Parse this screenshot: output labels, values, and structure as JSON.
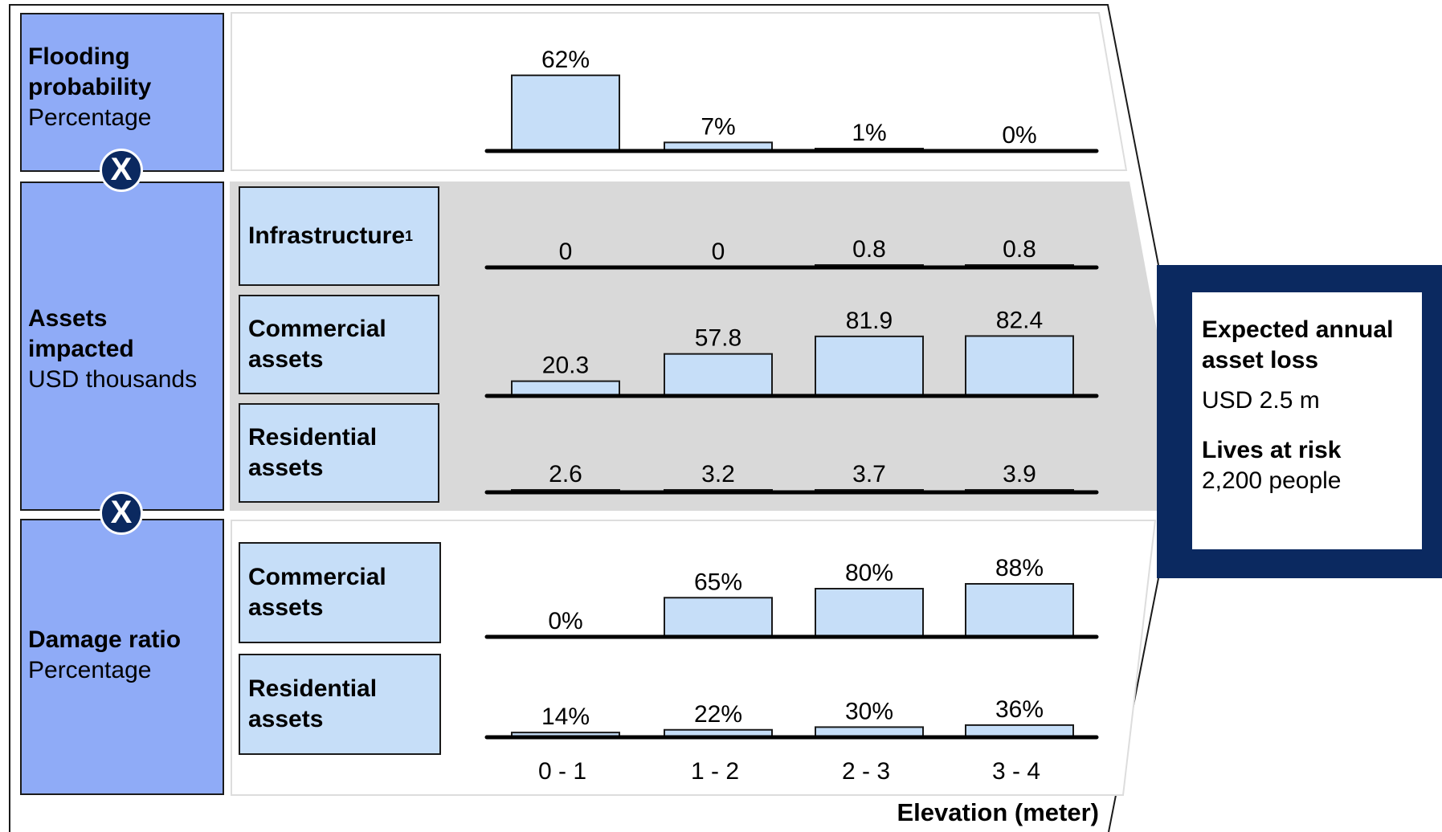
{
  "sections": {
    "flooding": {
      "title": "Flooding",
      "title2": "probability",
      "unit": "Percentage"
    },
    "assets": {
      "title": "Assets",
      "title2": "impacted",
      "unit": "USD thousands"
    },
    "damage": {
      "title": "Damage ratio",
      "unit": "Percentage"
    }
  },
  "categories": {
    "infrastructure": "Infrastructure",
    "infrastructure_sup": "1",
    "commercial_assets_1": "Commercial",
    "commercial_assets_2": "assets",
    "residential_assets_1": "Residential",
    "residential_assets_2": "assets"
  },
  "operators": {
    "multiply": "X"
  },
  "result": {
    "title1": "Expected annual",
    "title2": "asset loss",
    "value": "USD 2.5 m",
    "lives_title": "Lives at risk",
    "lives_value": "2,200 people"
  },
  "colors": {
    "section": "#8fabf7",
    "category": "#c6def8",
    "bar": "#c6def8",
    "accent": "#0b2960",
    "band": "#d9d9d9"
  },
  "chart_data": [
    {
      "type": "bar",
      "name": "Flooding probability",
      "categories": [
        "0 - 1",
        "1 - 2",
        "2 - 3",
        "3 - 4"
      ],
      "values": [
        62,
        7,
        1,
        0
      ],
      "labels": [
        "62%",
        "7%",
        "1%",
        "0%"
      ],
      "unit": "Percentage"
    },
    {
      "type": "bar",
      "name": "Infrastructure",
      "categories": [
        "0 - 1",
        "1 - 2",
        "2 - 3",
        "3 - 4"
      ],
      "values": [
        0,
        0,
        0.8,
        0.8
      ],
      "labels": [
        "0",
        "0",
        "0.8",
        "0.8"
      ],
      "unit": "USD thousands"
    },
    {
      "type": "bar",
      "name": "Commercial assets",
      "categories": [
        "0 - 1",
        "1 - 2",
        "2 - 3",
        "3 - 4"
      ],
      "values": [
        20.3,
        57.8,
        81.9,
        82.4
      ],
      "labels": [
        "20.3",
        "57.8",
        "81.9",
        "82.4"
      ],
      "unit": "USD thousands"
    },
    {
      "type": "bar",
      "name": "Residential assets",
      "categories": [
        "0 - 1",
        "1 - 2",
        "2 - 3",
        "3 - 4"
      ],
      "values": [
        2.6,
        3.2,
        3.7,
        3.9
      ],
      "labels": [
        "2.6",
        "3.2",
        "3.7",
        "3.9"
      ],
      "unit": "USD thousands"
    },
    {
      "type": "bar",
      "name": "Commercial assets",
      "categories": [
        "0 - 1",
        "1 - 2",
        "2 - 3",
        "3 - 4"
      ],
      "values": [
        0,
        65,
        80,
        88
      ],
      "labels": [
        "0%",
        "65%",
        "80%",
        "88%"
      ],
      "unit": "Percentage"
    },
    {
      "type": "bar",
      "name": "Residential assets",
      "categories": [
        "0 - 1",
        "1 - 2",
        "2 - 3",
        "3 - 4"
      ],
      "values": [
        14,
        22,
        30,
        36
      ],
      "labels": [
        "14%",
        "22%",
        "30%",
        "36%"
      ],
      "unit": "Percentage"
    }
  ],
  "x_axis": {
    "categories": [
      "0 - 1",
      "1 - 2",
      "2 - 3",
      "3 - 4"
    ],
    "title": "Elevation (meter)"
  }
}
